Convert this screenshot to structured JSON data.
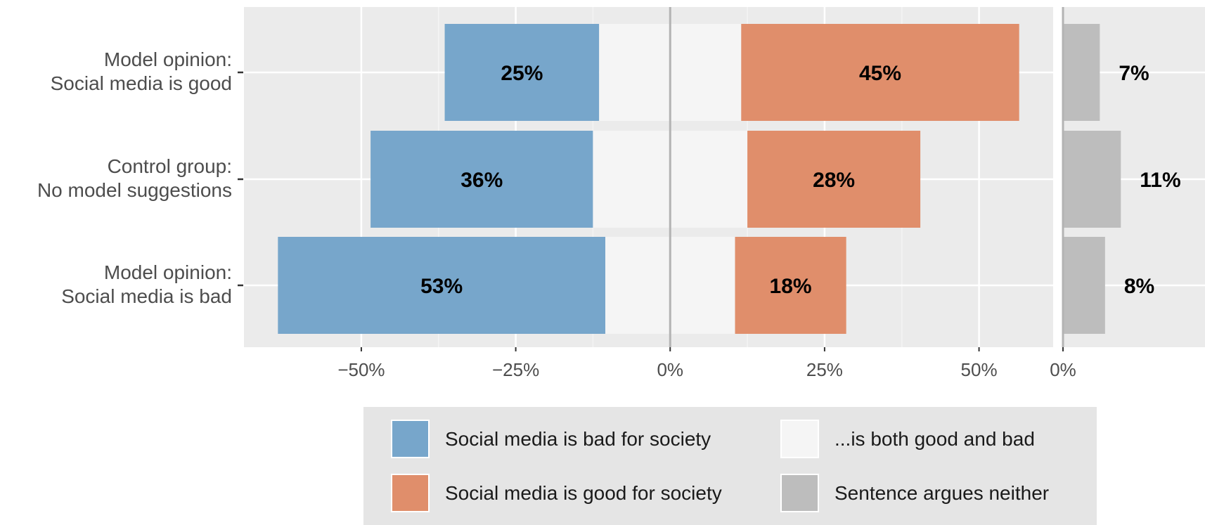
{
  "chart_data": {
    "type": "bar",
    "orientation": "horizontal",
    "layout": "diverging-stacked",
    "categories": [
      [
        "Model opinion:",
        "Social media is good"
      ],
      [
        "Control group:",
        "No model suggestions"
      ],
      [
        "Model opinion:",
        "Social media is bad"
      ]
    ],
    "series": [
      {
        "name": "Social media is bad for society",
        "color": "#77a6cb",
        "values": [
          25,
          36,
          53
        ],
        "labels": [
          "25%",
          "36%",
          "53%"
        ]
      },
      {
        "name": "...is both good and bad",
        "color": "#f5f5f5",
        "values": [
          23,
          25,
          21
        ],
        "labels": []
      },
      {
        "name": "Social media is good for society",
        "color": "#e08e6b",
        "values": [
          45,
          28,
          18
        ],
        "labels": [
          "45%",
          "28%",
          "18%"
        ]
      },
      {
        "name": "Sentence argues neither",
        "color": "#bdbdbd",
        "values": [
          7,
          11,
          8
        ],
        "labels": [
          "7%",
          "11%",
          "8%"
        ]
      }
    ],
    "main_xlim": [
      -69,
      62
    ],
    "main_xticks": [
      -50,
      -25,
      0,
      25,
      50
    ],
    "main_xtick_labels": [
      "−50%",
      "−25%",
      "0%",
      "25%",
      "50%"
    ],
    "side_xlim": [
      0,
      27
    ],
    "side_xticks": [
      0
    ],
    "side_xtick_labels": [
      "0%"
    ],
    "legend_position": "bottom",
    "legend_order": [
      "Social media is bad for society",
      "...is both good and bad",
      "Social media is good for society",
      "Sentence argues neither"
    ],
    "panel_background": "#ebebeb",
    "grid": true
  }
}
